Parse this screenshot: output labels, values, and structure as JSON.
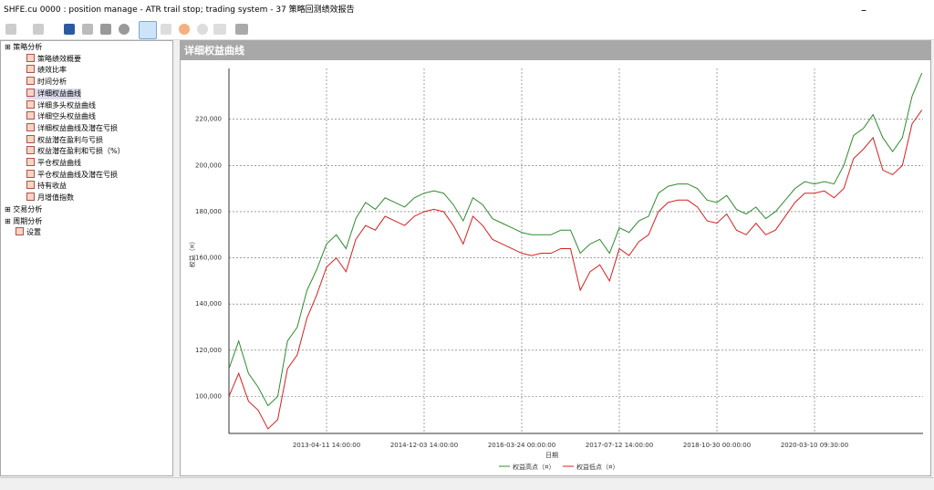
{
  "window": {
    "title": "SHFE.cu 0000 : position manage - ATR trail stop; trading system - 37 策略回测绩效报告"
  },
  "tree": {
    "groups": [
      {
        "label": "策略分析",
        "items": [
          "策略绩效概要",
          "绩效比率",
          "时间分析",
          "详细权益曲线",
          "详细多头权益曲线",
          "详细空头权益曲线",
          "详细权益曲线及潜在亏损",
          "权益潜在盈利与亏损",
          "权益潜在盈利和亏损（%）",
          "平仓权益曲线",
          "平仓权益曲线及潜在亏损",
          "持有收益",
          "月增值指数"
        ]
      },
      {
        "label": "交易分析",
        "items": []
      },
      {
        "label": "周期分析",
        "items": []
      }
    ],
    "settings": "设置",
    "selected": "详细权益曲线"
  },
  "panel": {
    "title": "详细权益曲线"
  },
  "chart_data": {
    "type": "line",
    "y_label": "权益（¤）",
    "x_label": "日期",
    "categories": [
      null,
      null,
      null,
      null,
      null,
      null,
      null,
      null,
      null,
      null,
      "2013-04-11 14:00:00",
      null,
      null,
      null,
      null,
      null,
      null,
      null,
      null,
      null,
      "2014-12-03 14:00:00",
      null,
      null,
      null,
      null,
      null,
      null,
      null,
      null,
      null,
      "2016-03-24 00:00:00",
      null,
      null,
      null,
      null,
      null,
      null,
      null,
      null,
      null,
      "2017-07-12 14:00:00",
      null,
      null,
      null,
      null,
      null,
      null,
      null,
      null,
      null,
      "2018-10-30 00:00:00",
      null,
      null,
      null,
      null,
      null,
      null,
      null,
      null,
      null,
      "2020-03-10 09:30:00",
      null,
      null,
      null,
      null,
      null,
      null,
      null,
      null,
      null,
      null,
      null
    ],
    "series": [
      {
        "name": "权益高点（¤）",
        "color": "#2e8b2e",
        "values": [
          112000,
          124000,
          110000,
          104000,
          96000,
          100000,
          124000,
          130000,
          146000,
          155000,
          166000,
          170000,
          164000,
          177000,
          184000,
          181000,
          186000,
          184000,
          182000,
          186000,
          188000,
          189000,
          188000,
          183000,
          176000,
          186000,
          183000,
          177000,
          175000,
          173000,
          171000,
          170000,
          170000,
          170000,
          172000,
          172000,
          162000,
          166000,
          168000,
          162000,
          173000,
          171000,
          176000,
          178000,
          188000,
          191000,
          192000,
          192000,
          190000,
          185000,
          184000,
          187000,
          181000,
          179000,
          182000,
          177000,
          180000,
          185000,
          190000,
          193000,
          192000,
          193000,
          192000,
          200000,
          213000,
          216000,
          222000,
          212000,
          206000,
          212000,
          230000,
          240000
        ]
      },
      {
        "name": "权益低点（¤）",
        "color": "#d62020",
        "values": [
          100000,
          110000,
          98000,
          94000,
          86000,
          90000,
          112000,
          118000,
          134000,
          144000,
          156000,
          160000,
          154000,
          168000,
          174000,
          172000,
          178000,
          176000,
          174000,
          178000,
          180000,
          181000,
          180000,
          174000,
          166000,
          178000,
          174000,
          168000,
          166000,
          164000,
          162000,
          161000,
          162000,
          162000,
          164000,
          164000,
          146000,
          154000,
          157000,
          150000,
          164000,
          161000,
          167000,
          170000,
          180000,
          184000,
          185000,
          185000,
          182000,
          176000,
          175000,
          179000,
          172000,
          170000,
          175000,
          170000,
          172000,
          178000,
          184000,
          188000,
          188000,
          189000,
          186000,
          190000,
          203000,
          207000,
          212000,
          198000,
          196000,
          200000,
          218000,
          224000
        ]
      }
    ],
    "ylim": [
      84000,
      242000
    ],
    "yticks": [
      {
        "value": 100000,
        "label": "100,000"
      },
      {
        "value": 120000,
        "label": "120,000"
      },
      {
        "value": 140000,
        "label": "140,000"
      },
      {
        "value": 160000,
        "label": "160,000"
      },
      {
        "value": 180000,
        "label": "180,000"
      },
      {
        "value": 200000,
        "label": "200,000"
      },
      {
        "value": 220000,
        "label": "220,000"
      }
    ],
    "grid": true
  }
}
